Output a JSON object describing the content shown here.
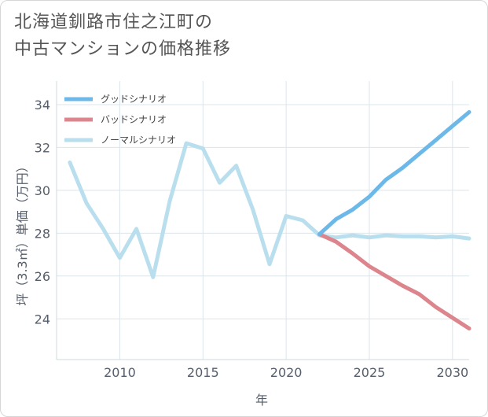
{
  "title": {
    "line1": "北海道釧路市住之江町の",
    "line2": "中古マンションの価格推移"
  },
  "chart_data": {
    "type": "line",
    "xlabel": "年",
    "ylabel": "坪（3.3㎡）単価（万円）",
    "xlim": [
      2006.2,
      2031
    ],
    "ylim": [
      22.1,
      35.1
    ],
    "x_ticks": [
      2010,
      2015,
      2020,
      2025,
      2030
    ],
    "y_ticks": [
      24,
      26,
      28,
      30,
      32,
      34
    ],
    "grid": true,
    "legend_position": "top-left",
    "series": [
      {
        "name": "グッドシナリオ",
        "color": "#6cb8e8",
        "x": [
          2022,
          2023,
          2024,
          2025,
          2026,
          2027,
          2028,
          2029,
          2030,
          2031
        ],
        "values": [
          27.95,
          28.65,
          29.1,
          29.7,
          30.5,
          31.05,
          31.7,
          32.35,
          33.0,
          33.65
        ]
      },
      {
        "name": "バッドシナリオ",
        "color": "#dc858c",
        "x": [
          2022,
          2023,
          2024,
          2025,
          2026,
          2027,
          2028,
          2029,
          2030,
          2031
        ],
        "values": [
          27.95,
          27.6,
          27.05,
          26.45,
          26.0,
          25.55,
          25.15,
          24.55,
          24.05,
          23.55
        ]
      },
      {
        "name": "ノーマルシナリオ",
        "color": "#b9dfee",
        "x": [
          2007,
          2008,
          2009,
          2010,
          2011,
          2012,
          2013,
          2014,
          2015,
          2016,
          2017,
          2018,
          2019,
          2020,
          2021,
          2022,
          2023,
          2024,
          2025,
          2026,
          2027,
          2028,
          2029,
          2030,
          2031
        ],
        "values": [
          31.3,
          29.4,
          28.2,
          26.85,
          28.2,
          25.95,
          29.5,
          32.2,
          31.95,
          30.35,
          31.15,
          29.1,
          26.55,
          28.8,
          28.6,
          27.9,
          27.8,
          27.9,
          27.8,
          27.9,
          27.85,
          27.85,
          27.8,
          27.85,
          27.75
        ]
      }
    ]
  }
}
